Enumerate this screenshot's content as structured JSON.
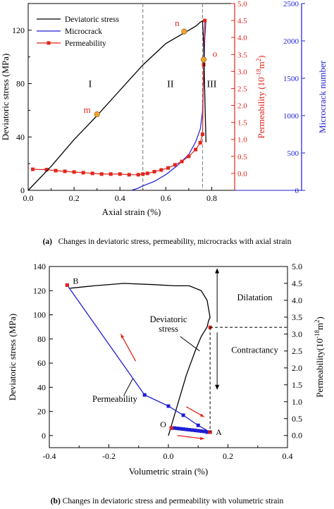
{
  "captions": {
    "a_label": "(a)",
    "a_text": "Changes in deviatoric stress, permeability, microcracks with axial strain",
    "b_label": "(b)",
    "b_text": "Changes in deviatoric stress and permeability with volumetric strain"
  },
  "colors": {
    "stress": "#000000",
    "microcrack": "#1f1fd6",
    "permeability": "#e3241b",
    "marker": "#f0a030",
    "phase_line": "#777777"
  },
  "chart_data": [
    {
      "type": "line",
      "xlabel": "Axial strain (%)",
      "ylabel": "Deviatoric stress (MPa)",
      "y2label_prefix": "Permeability (10",
      "y2label_sup": "-18",
      "y2label_suffix": "m",
      "y2label_sup2": "2",
      "y2label_end": ")",
      "y3label": "Microcrack number",
      "xlim": [
        0,
        0.9
      ],
      "ylim": [
        0,
        140
      ],
      "y2lim": [
        -0.5,
        5.0
      ],
      "y3lim": [
        0,
        2500
      ],
      "xticks": [
        0,
        0.2,
        0.4,
        0.6,
        0.8
      ],
      "xtick_labels": [
        "0.0",
        "0.2",
        "0.4",
        "0.6",
        "0.8"
      ],
      "yticks": [
        0,
        40,
        80,
        120
      ],
      "ytick_labels": [
        "0",
        "40",
        "80",
        "120"
      ],
      "y2ticks": [
        0,
        0.5,
        1.0,
        1.5,
        2.0,
        2.5,
        3.0,
        3.5,
        4.0,
        4.5,
        5.0
      ],
      "y2tick_labels": [
        "0.0",
        "0.5",
        "1.0",
        "1.5",
        "2.0",
        "2.5",
        "3.0",
        "3.5",
        "4.0",
        "4.5",
        "5.0"
      ],
      "y3ticks": [
        0,
        500,
        1000,
        1500,
        2000,
        2500
      ],
      "y3tick_labels": [
        "0",
        "500",
        "1000",
        "1500",
        "2000",
        "2500"
      ],
      "legend": {
        "placement": "top-left",
        "entries": [
          "Deviatoric stress",
          "Microcrack",
          "Permeability"
        ]
      },
      "phase_lines": [
        0.5,
        0.76
      ],
      "phase_labels": [
        {
          "text": "I",
          "x": 0.27,
          "y": 80
        },
        {
          "text": "II",
          "x": 0.62,
          "y": 80
        },
        {
          "text": "III",
          "x": 0.8,
          "y": 80
        }
      ],
      "series": [
        {
          "name": "Deviatoric stress",
          "axis": "left",
          "x": [
            0.0,
            0.1,
            0.2,
            0.3,
            0.4,
            0.5,
            0.6,
            0.65,
            0.7,
            0.73,
            0.75,
            0.76,
            0.765,
            0.77,
            0.775
          ],
          "y": [
            0,
            18,
            38,
            56,
            75,
            94,
            110,
            115,
            120,
            123,
            126,
            127,
            110,
            70,
            36
          ]
        },
        {
          "name": "Microcrack",
          "axis": "right2",
          "x": [
            0.45,
            0.48,
            0.5,
            0.55,
            0.6,
            0.65,
            0.7,
            0.73,
            0.75,
            0.76,
            0.765,
            0.77,
            0.775
          ],
          "y": [
            0,
            30,
            60,
            120,
            210,
            330,
            480,
            650,
            820,
            1050,
            1500,
            2050,
            2280
          ]
        },
        {
          "name": "Permeability",
          "axis": "right1",
          "x": [
            0.02,
            0.08,
            0.12,
            0.16,
            0.2,
            0.24,
            0.28,
            0.32,
            0.36,
            0.4,
            0.44,
            0.48,
            0.5,
            0.52,
            0.55,
            0.58,
            0.61,
            0.64,
            0.67,
            0.7,
            0.73,
            0.75,
            0.76,
            0.765,
            0.77
          ],
          "y": [
            0.12,
            0.11,
            0.08,
            0.06,
            0.04,
            0.02,
            0.0,
            -0.02,
            -0.02,
            -0.02,
            -0.04,
            -0.04,
            -0.02,
            0.0,
            0.05,
            0.1,
            0.16,
            0.25,
            0.35,
            0.5,
            0.7,
            0.9,
            1.15,
            3.2,
            4.5
          ]
        }
      ],
      "points": [
        {
          "label": "m",
          "x": 0.3,
          "y": 57
        },
        {
          "label": "n",
          "x": 0.68,
          "y": 119
        },
        {
          "label": "o",
          "x": 0.765,
          "y": 98
        }
      ]
    },
    {
      "type": "line",
      "xlabel": "Volumetric strain (%)",
      "ylabel": "Deviatoric stress (MPa)",
      "y2label_prefix": "Permeability(10",
      "y2label_sup": "-18",
      "y2label_suffix": "m",
      "y2label_sup2": "2",
      "y2label_end": ")",
      "xlim": [
        -0.4,
        0.4
      ],
      "ylim": [
        -10,
        140
      ],
      "y2lim": [
        -0.36,
        5.0
      ],
      "xticks": [
        -0.4,
        -0.2,
        0.0,
        0.2,
        0.4
      ],
      "xtick_labels": [
        "-0.4",
        "-0.2",
        "0.0",
        "0.2",
        "0.4"
      ],
      "yticks": [
        0,
        20,
        40,
        60,
        80,
        100,
        120,
        140
      ],
      "ytick_labels": [
        "0",
        "20",
        "40",
        "60",
        "80",
        "100",
        "120",
        "140"
      ],
      "y2ticks": [
        0,
        0.5,
        1.0,
        1.5,
        2.0,
        2.5,
        3.0,
        3.5,
        4.0,
        4.5,
        5.0
      ],
      "y2tick_labels": [
        "0.0",
        "0.5",
        "1.0",
        "1.5",
        "2.0",
        "2.5",
        "3.0",
        "3.5",
        "4.0",
        "4.5",
        "5.0"
      ],
      "series": [
        {
          "name": "Deviatoric stress",
          "axis": "left",
          "x": [
            0.0,
            0.03,
            0.06,
            0.09,
            0.11,
            0.13,
            0.135,
            0.14,
            0.13,
            0.11,
            0.07,
            0.02,
            -0.05,
            -0.15,
            -0.25,
            -0.33
          ],
          "y": [
            0,
            25,
            50,
            70,
            82,
            90,
            95,
            98,
            112,
            120,
            124,
            124,
            125,
            126,
            124,
            122
          ]
        },
        {
          "name": "Permeability",
          "axis": "right",
          "x": [
            0.14,
            0.13,
            0.12,
            0.11,
            0.1,
            0.09,
            0.08,
            0.07,
            0.06,
            0.05,
            0.04,
            0.03,
            0.02,
            0.01,
            0.02,
            0.05,
            0.08,
            0.1,
            0.13,
            0.135,
            0.14,
            0.0,
            -0.08,
            -0.34
          ],
          "y": [
            0.1,
            0.1,
            0.12,
            0.13,
            0.14,
            0.15,
            0.16,
            0.17,
            0.18,
            0.19,
            0.2,
            0.21,
            0.22,
            0.23,
            0.8,
            0.6,
            0.4,
            0.3,
            0.2,
            3.2,
            0.1,
            0.87,
            1.2,
            4.45
          ]
        }
      ],
      "labels": {
        "B": "B",
        "O": "O",
        "A": "A",
        "stress_line1": "Deviatoric",
        "stress_line2": "stress",
        "permeability": "Permeability",
        "dilatation": "Dilatation",
        "contractancy": "Contractancy"
      }
    }
  ]
}
